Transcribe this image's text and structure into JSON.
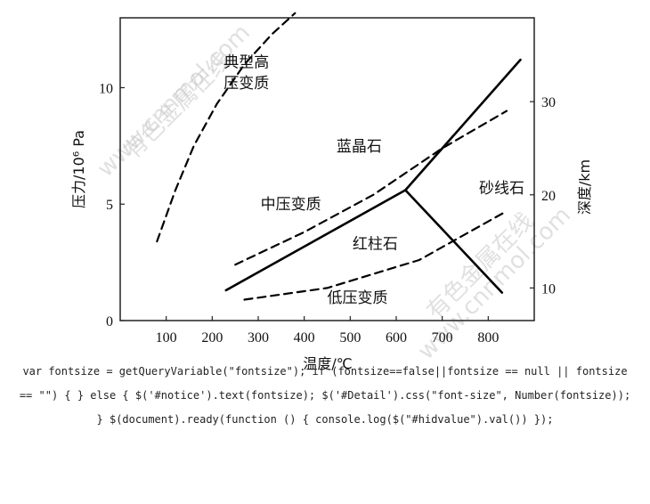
{
  "chart_data": {
    "type": "line",
    "xlabel": "温度/℃",
    "ylabel_left": "压力/10⁶ Pa",
    "ylabel_right": "深度/km",
    "x_ticks": [
      100,
      200,
      300,
      400,
      500,
      600,
      700,
      800
    ],
    "y_ticks_left": [
      0,
      5,
      10
    ],
    "y_ticks_right": [
      10,
      20,
      30
    ],
    "xlim": [
      0,
      900
    ],
    "ylim": [
      0,
      13
    ],
    "series": [
      {
        "style": "solid",
        "x": [
          230,
          620
        ],
        "y": [
          1.3,
          5.6
        ]
      },
      {
        "style": "solid",
        "x": [
          620,
          870
        ],
        "y": [
          5.6,
          11.2
        ]
      },
      {
        "style": "solid",
        "x": [
          620,
          830
        ],
        "y": [
          5.6,
          1.2
        ]
      },
      {
        "style": "dashed",
        "x": [
          80,
          120,
          160,
          210,
          270,
          330,
          380
        ],
        "y": [
          3.4,
          5.6,
          7.5,
          9.3,
          11.0,
          12.3,
          13.2
        ]
      },
      {
        "style": "dashed",
        "x": [
          250,
          400,
          550,
          700,
          840
        ],
        "y": [
          2.4,
          3.8,
          5.4,
          7.4,
          9.0
        ]
      },
      {
        "style": "dashed",
        "x": [
          270,
          450,
          650,
          840
        ],
        "y": [
          0.9,
          1.4,
          2.6,
          4.7
        ]
      }
    ],
    "region_labels": [
      {
        "text": "典型高",
        "x": 225,
        "y": 11.1
      },
      {
        "text": "压变质",
        "x": 225,
        "y": 10.2
      },
      {
        "text": "蓝晶石",
        "x": 470,
        "y": 7.5
      },
      {
        "text": "中压变质",
        "x": 305,
        "y": 5.0
      },
      {
        "text": "砂线石",
        "x": 780,
        "y": 5.7
      },
      {
        "text": "红柱石",
        "x": 505,
        "y": 3.3
      },
      {
        "text": "低压变质",
        "x": 450,
        "y": 1.0
      }
    ]
  },
  "watermarks": [
    {
      "text": "www.cnnmol.com",
      "angle": -45
    },
    {
      "text": "有色金属在线",
      "angle": -45
    },
    {
      "text": "www.cnnmol.com",
      "angle": -45
    },
    {
      "text": "有色金属在线",
      "angle": -45
    }
  ],
  "code_snippet": "var fontsize = getQueryVariable(\"fontsize\"); if (fontsize==false||fontsize == null || fontsize == \"\") { } else { $('#notice').text(fontsize); $('#Detail').css(\"font-size\", Number(fontsize)); } $(document).ready(function () { console.log($(\"#hidvalue\").val()) });"
}
